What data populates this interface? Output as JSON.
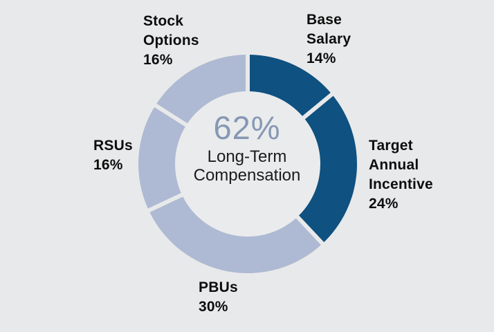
{
  "page": {
    "background": "#e8e9ea"
  },
  "chart_data": {
    "type": "pie",
    "subtype": "donut",
    "title": "",
    "legend_position": "none",
    "start_angle_deg_from_top": 0,
    "direction": "clockwise",
    "center": {
      "value": "62%",
      "label": "Long-Term\nCompensation",
      "value_color": "#8598b4",
      "label_color": "#1c1c1c"
    },
    "colors": {
      "primary_dark": "#0f5180",
      "primary_light": "#aebad3",
      "gap": "#e8e9ea",
      "hole": "#eaebec",
      "label_text": "#0d0d0d"
    },
    "segments": [
      {
        "name": "Base Salary",
        "value": 14,
        "color": "#0f5180",
        "label_text": "Base\nSalary\n14%"
      },
      {
        "name": "Target Annual Incentive",
        "value": 24,
        "color": "#0f5180",
        "label_text": "Target\nAnnual\nIncentive\n24%"
      },
      {
        "name": "PBUs",
        "value": 30,
        "color": "#aebad3",
        "label_text": "PBUs\n30%"
      },
      {
        "name": "RSUs",
        "value": 16,
        "color": "#aebad3",
        "label_text": "RSUs\n16%"
      },
      {
        "name": "Stock Options",
        "value": 16,
        "color": "#aebad3",
        "label_text": "Stock\nOptions\n16%"
      }
    ]
  }
}
